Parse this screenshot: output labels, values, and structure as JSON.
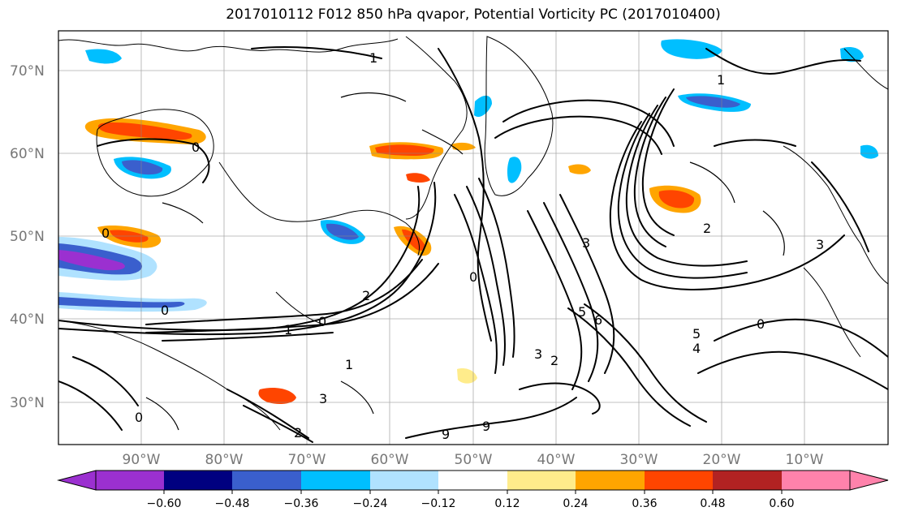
{
  "title": "2017010112 F012 850 hPa qvapor, Potential Vorticity PC (2017010400)",
  "map": {
    "lat_labels": [
      "70°N",
      "60°N",
      "50°N",
      "40°N",
      "30°N"
    ],
    "lon_labels": [
      "90°W",
      "80°W",
      "70°W",
      "60°W",
      "50°W",
      "40°W",
      "30°W",
      "20°W",
      "10°W"
    ],
    "contour_labels": [
      "1",
      "1",
      "0",
      "0",
      "0",
      "2",
      "0",
      "0",
      "3",
      "3",
      "2",
      "5",
      "6",
      "5",
      "4",
      "2",
      "0",
      "3",
      "9",
      "9",
      "1",
      "0",
      "2",
      "3",
      "1"
    ],
    "label_color": "#777777"
  },
  "colorbar": {
    "ticks": [
      "−0.60",
      "−0.48",
      "−0.36",
      "−0.24",
      "−0.12",
      "0.12",
      "0.24",
      "0.36",
      "0.48",
      "0.60"
    ],
    "colors": [
      "#9b30d0",
      "#000080",
      "#3a5fcd",
      "#00bfff",
      "#b0e2ff",
      "#ffffff",
      "#ffec8b",
      "#ffa500",
      "#ff4500",
      "#b22222",
      "#ff82ab"
    ]
  },
  "chart_data": {
    "type": "heatmap",
    "title": "2017010112 F012 850 hPa qvapor, Potential Vorticity PC (2017010400)",
    "x_range": [
      "100°W",
      "0°"
    ],
    "y_range": [
      "25°N",
      "75°N"
    ],
    "x_ticks": [
      "90°W",
      "80°W",
      "70°W",
      "60°W",
      "50°W",
      "40°W",
      "30°W",
      "20°W",
      "10°W"
    ],
    "y_ticks": [
      "70°N",
      "60°N",
      "50°N",
      "40°N",
      "30°N"
    ],
    "color_levels": [
      -0.6,
      -0.48,
      -0.36,
      -0.24,
      -0.12,
      0.12,
      0.24,
      0.36,
      0.48,
      0.6
    ],
    "grid": true,
    "colorbar": "bottom"
  }
}
